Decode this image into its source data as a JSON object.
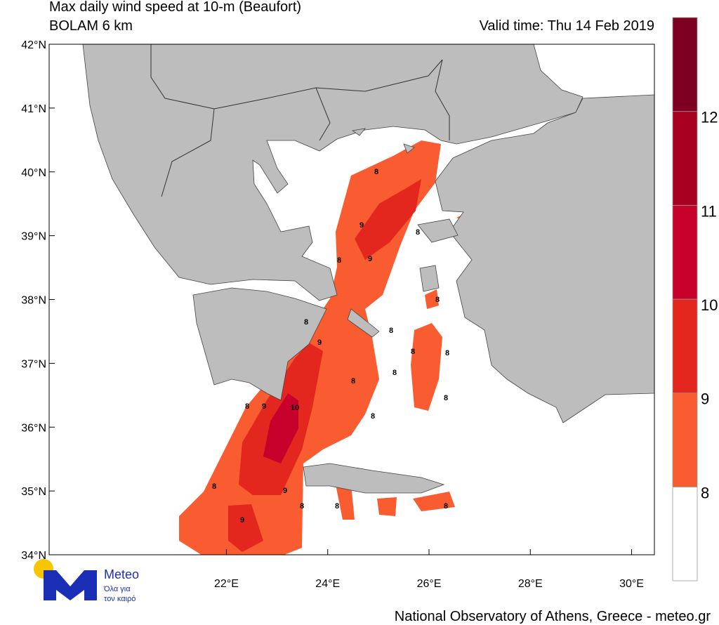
{
  "map": {
    "title": "Max daily wind speed at 10-m (Beaufort)",
    "subtitle": "BOLAM 6 km",
    "valid_time": "Valid time: Thu 14 Feb 2019",
    "lon_range": [
      18.5,
      30.45
    ],
    "lat_range": [
      34,
      42
    ],
    "lat_ticks": [
      {
        "value": 42,
        "label": "42°N"
      },
      {
        "value": 41,
        "label": "41°N"
      },
      {
        "value": 40,
        "label": "40°N"
      },
      {
        "value": 39,
        "label": "39°N"
      },
      {
        "value": 38,
        "label": "38°N"
      },
      {
        "value": 37,
        "label": "37°N"
      },
      {
        "value": 36,
        "label": "36°N"
      },
      {
        "value": 35,
        "label": "35°N"
      },
      {
        "value": 34,
        "label": "34°N"
      }
    ],
    "lon_ticks": [
      {
        "value": 22,
        "label": "22°E"
      },
      {
        "value": 24,
        "label": "24°E"
      },
      {
        "value": 26,
        "label": "26°E"
      },
      {
        "value": 28,
        "label": "28°E"
      },
      {
        "value": 30,
        "label": "30°E"
      }
    ],
    "colorbar": {
      "levels": [
        8,
        9,
        10,
        11,
        12
      ],
      "colors": [
        "#ffffff",
        "#f95c30",
        "#e3261e",
        "#c8002c",
        "#a80020",
        "#7d0022"
      ]
    },
    "contour_labels": [
      8,
      9,
      8,
      8,
      9,
      8,
      8,
      9,
      8,
      8,
      8,
      8,
      8,
      8,
      8,
      9,
      10,
      8,
      8,
      9,
      8,
      8,
      8,
      9
    ],
    "logo": {
      "name": "Meteo",
      "tagline_1": "Όλα για",
      "tagline_2": "τον καιρό"
    },
    "footer": "National Observatory of Athens, Greece - meteo.gr"
  }
}
